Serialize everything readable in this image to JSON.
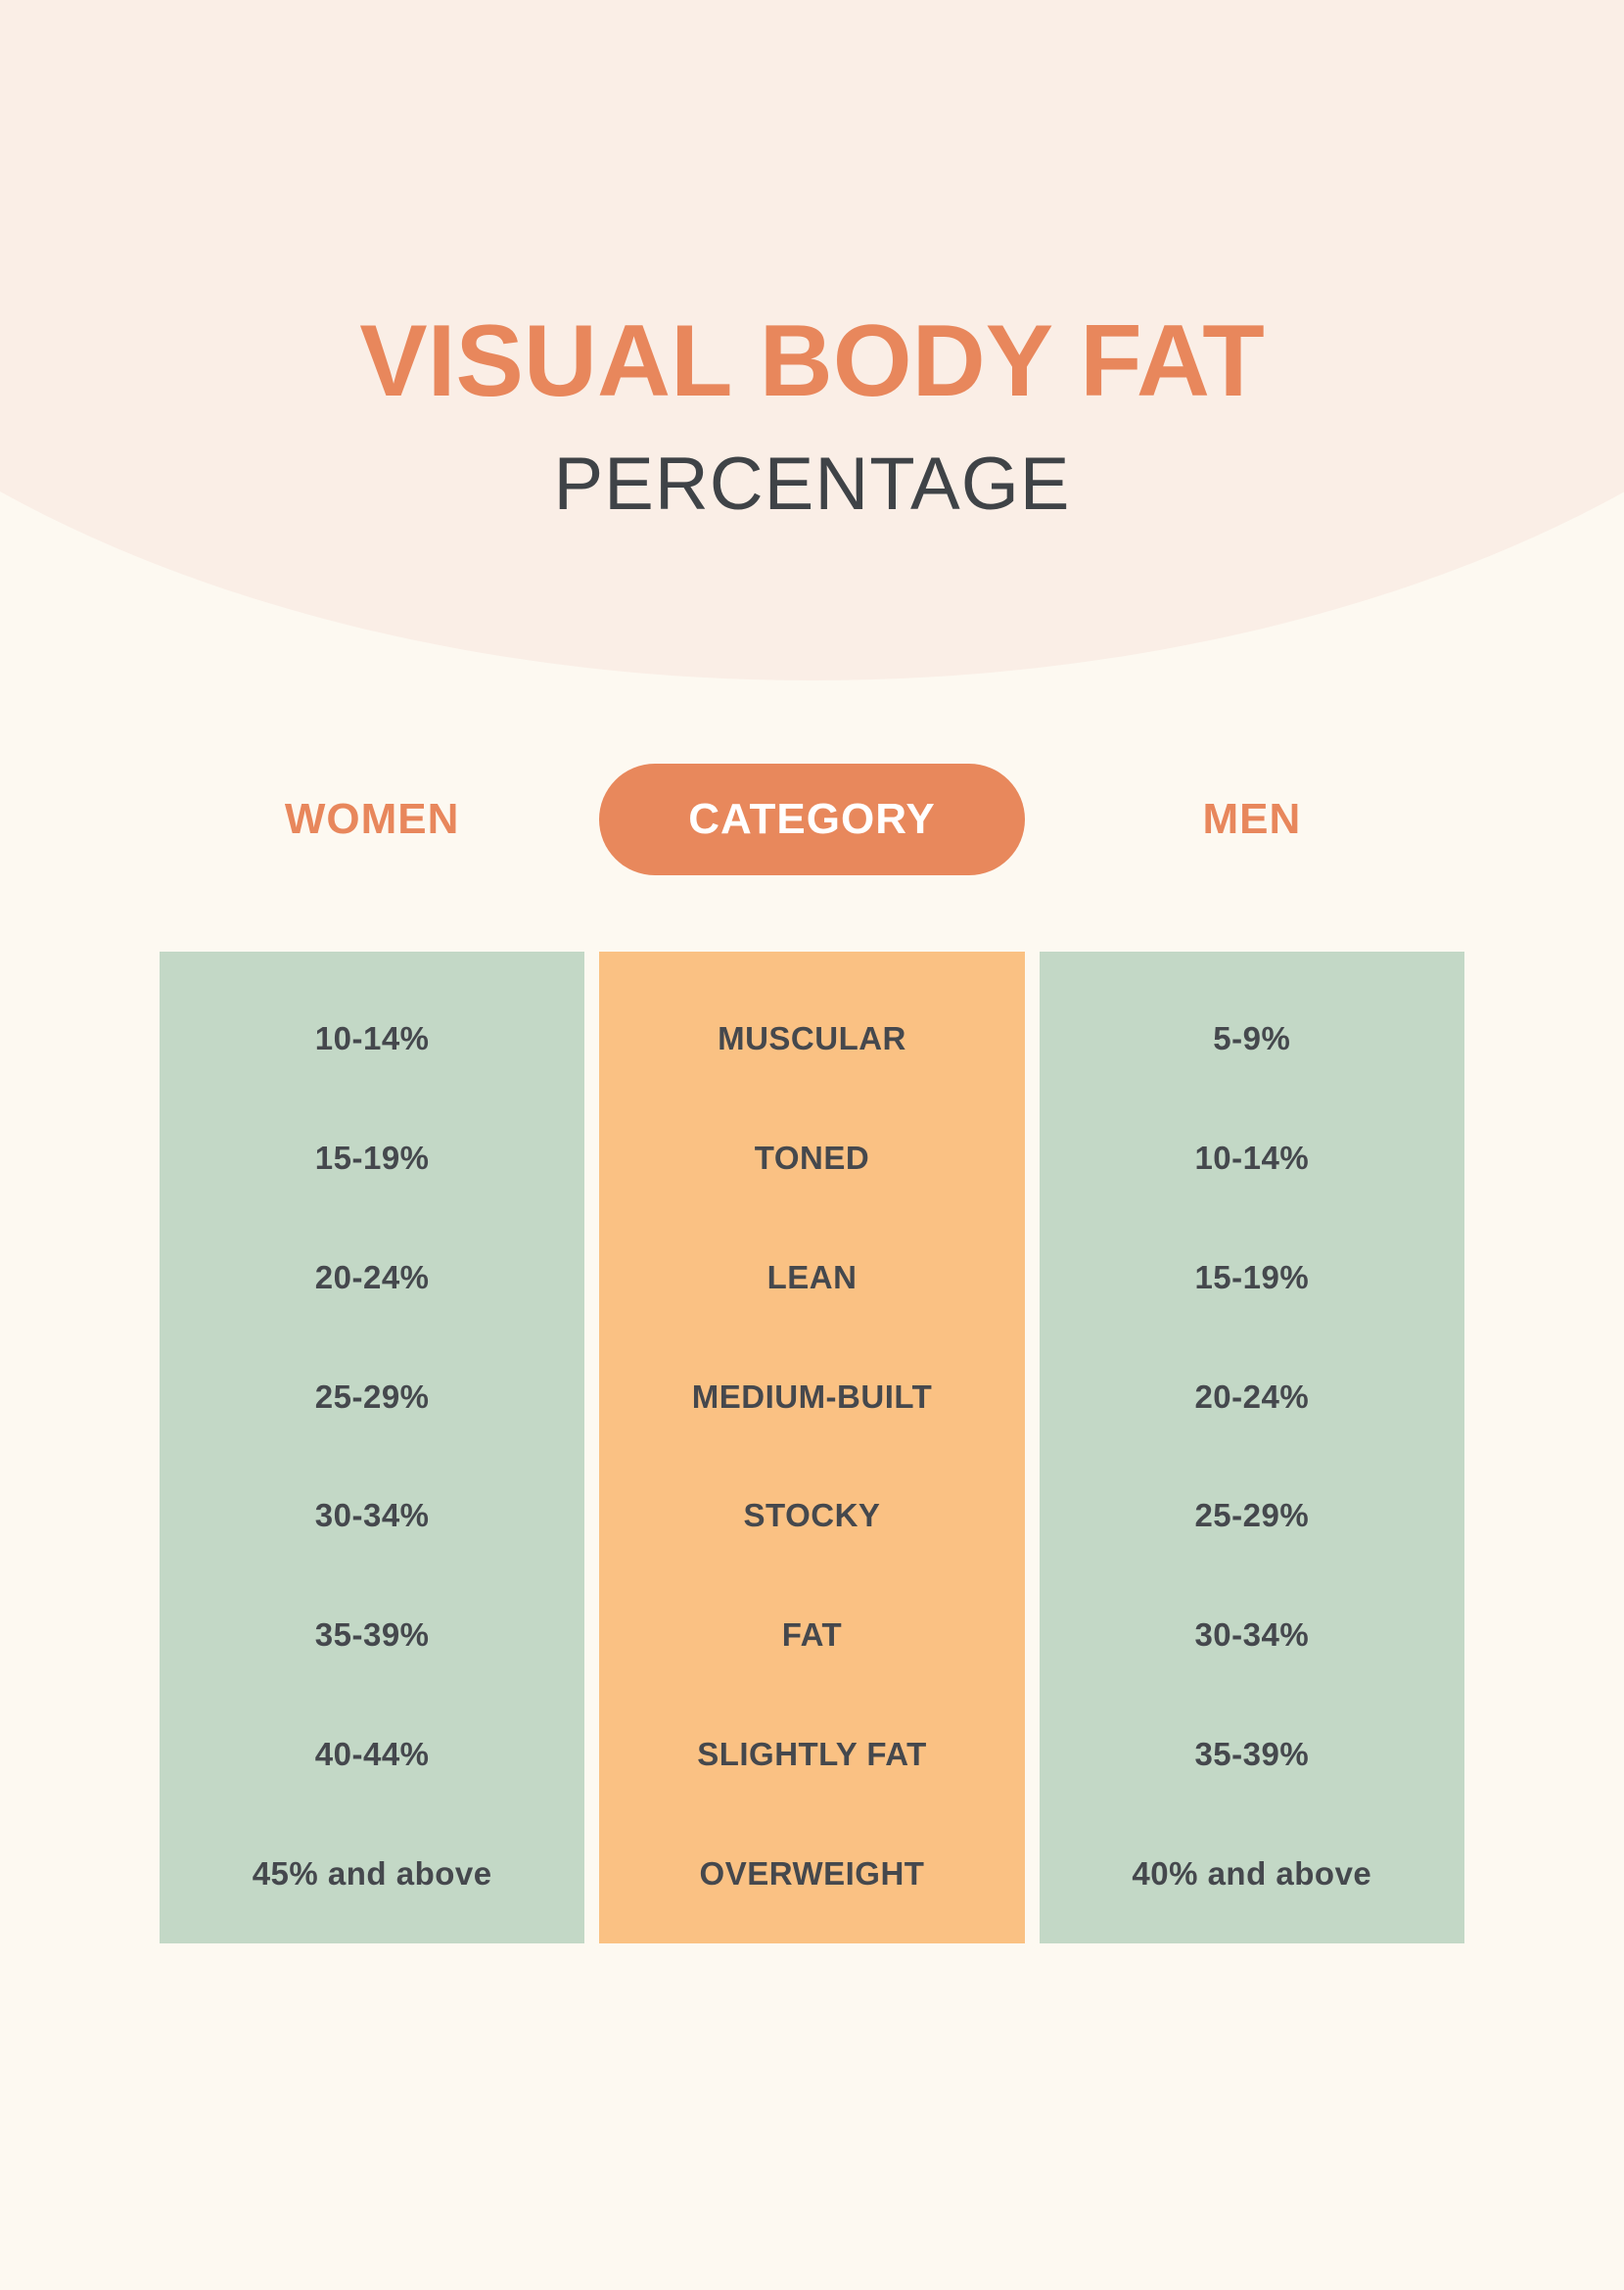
{
  "title": {
    "line1": "VISUAL BODY FAT",
    "line2": "PERCENTAGE"
  },
  "header": {
    "left": "WOMEN",
    "center": "CATEGORY",
    "right": "MEN"
  },
  "colors": {
    "page_bg": "#FDF9F1",
    "hero_bg": "#FAEEE6",
    "accent_orange": "#E8875C",
    "pill_bg": "#E8885C",
    "green_column": "#C3D8C6",
    "orange_column": "#FAC183",
    "cell_text": "#45484D",
    "subtitle_text": "#3F4347"
  },
  "chart_data": {
    "type": "table",
    "title": "VISUAL BODY FAT PERCENTAGE",
    "columns": [
      "WOMEN",
      "CATEGORY",
      "MEN"
    ],
    "rows": [
      [
        "10-14%",
        "MUSCULAR",
        "5-9%"
      ],
      [
        "15-19%",
        "TONED",
        "10-14%"
      ],
      [
        "20-24%",
        "LEAN",
        "15-19%"
      ],
      [
        "25-29%",
        "MEDIUM-BUILT",
        "20-24%"
      ],
      [
        "30-34%",
        "STOCKY",
        "25-29%"
      ],
      [
        "35-39%",
        "FAT",
        "30-34%"
      ],
      [
        "40-44%",
        "SLIGHTLY FAT",
        "35-39%"
      ],
      [
        "45% and above",
        "OVERWEIGHT",
        "40% and above"
      ]
    ],
    "layout": {
      "column_fills": [
        "green",
        "orange",
        "green"
      ],
      "legend": "none",
      "grid": "off"
    }
  }
}
